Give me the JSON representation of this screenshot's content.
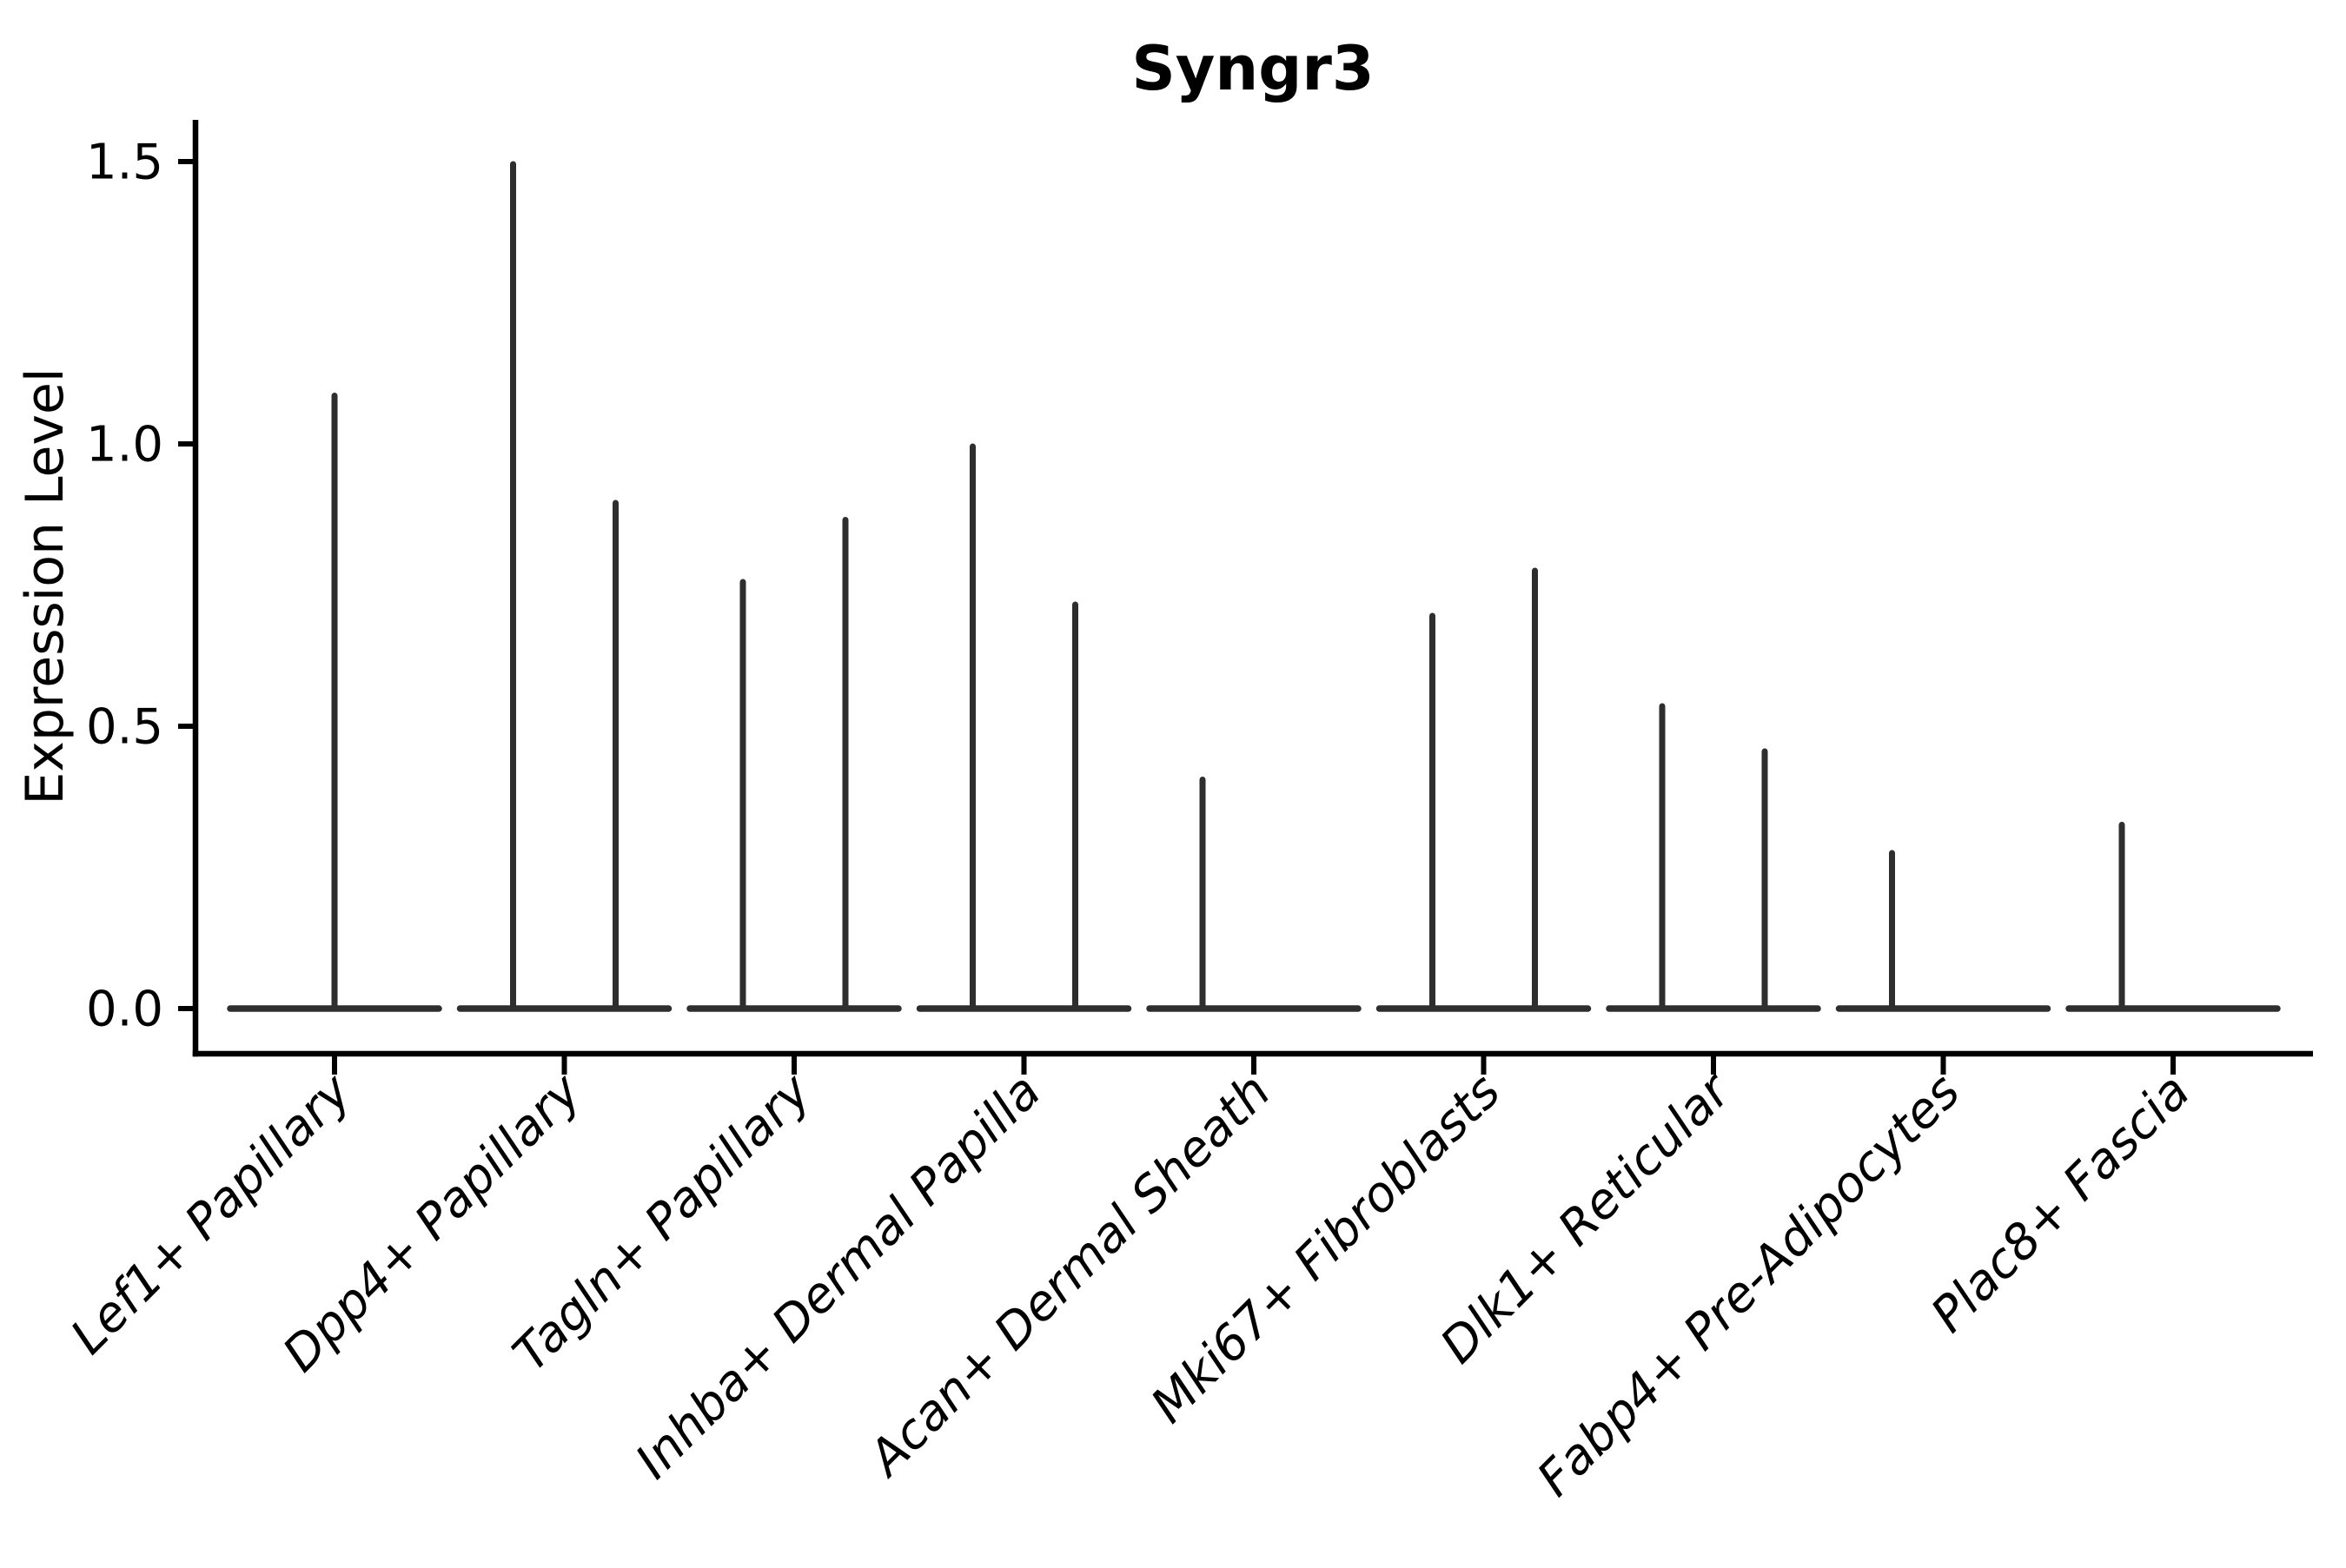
{
  "figure": {
    "background": "#ffffff"
  },
  "chart_data": {
    "type": "violin",
    "title": "Syngr3",
    "ylabel": "Expression Level",
    "xlabel": "",
    "grid": false,
    "legend": null,
    "ytick_labels": [
      "0.0",
      "0.5",
      "1.0",
      "1.5"
    ],
    "ytick_values": [
      0.0,
      0.5,
      1.0,
      1.5
    ],
    "ylim": [
      0.0,
      1.58
    ],
    "categories": [
      "Lef1+ Papillary",
      "Dpp4+ Papillary",
      "Tagln+ Papillary",
      "Inhba+ Dermal Papilla",
      "Acan+ Dermal Sheath",
      "Mki67+ Fibroblasts",
      "Dlk1+ Reticular",
      "Fabp4+ Pre-Adipocytes",
      "Plac8+ Fascia"
    ],
    "violins": [
      {
        "category": "Lef1+ Papillary",
        "spikes": [
          {
            "offset": 0,
            "max": 1.09
          }
        ]
      },
      {
        "category": "Dpp4+ Papillary",
        "spikes": [
          {
            "offset": -59,
            "max": 1.5
          },
          {
            "offset": 59,
            "max": 0.9
          }
        ]
      },
      {
        "category": "Tagln+ Papillary",
        "spikes": [
          {
            "offset": -59,
            "max": 0.76
          },
          {
            "offset": 59,
            "max": 0.87
          }
        ]
      },
      {
        "category": "Inhba+ Dermal Papilla",
        "spikes": [
          {
            "offset": -59,
            "max": 1.0
          },
          {
            "offset": 59,
            "max": 0.72
          }
        ]
      },
      {
        "category": "Acan+ Dermal Sheath",
        "spikes": [
          {
            "offset": -59,
            "max": 0.41
          }
        ]
      },
      {
        "category": "Mki67+ Fibroblasts",
        "spikes": [
          {
            "offset": -59,
            "max": 0.7
          },
          {
            "offset": 59,
            "max": 0.78
          }
        ]
      },
      {
        "category": "Dlk1+ Reticular",
        "spikes": [
          {
            "offset": -59,
            "max": 0.54
          },
          {
            "offset": 59,
            "max": 0.46
          }
        ]
      },
      {
        "category": "Fabp4+ Pre-Adipocytes",
        "spikes": [
          {
            "offset": -59,
            "max": 0.28
          }
        ]
      },
      {
        "category": "Plac8+ Fascia",
        "spikes": [
          {
            "offset": -59,
            "max": 0.33
          }
        ]
      }
    ],
    "baseline_halfwidth": 120,
    "violin_color": "#2e2e2e",
    "axis_color": "#000000",
    "background": "#ffffff"
  }
}
